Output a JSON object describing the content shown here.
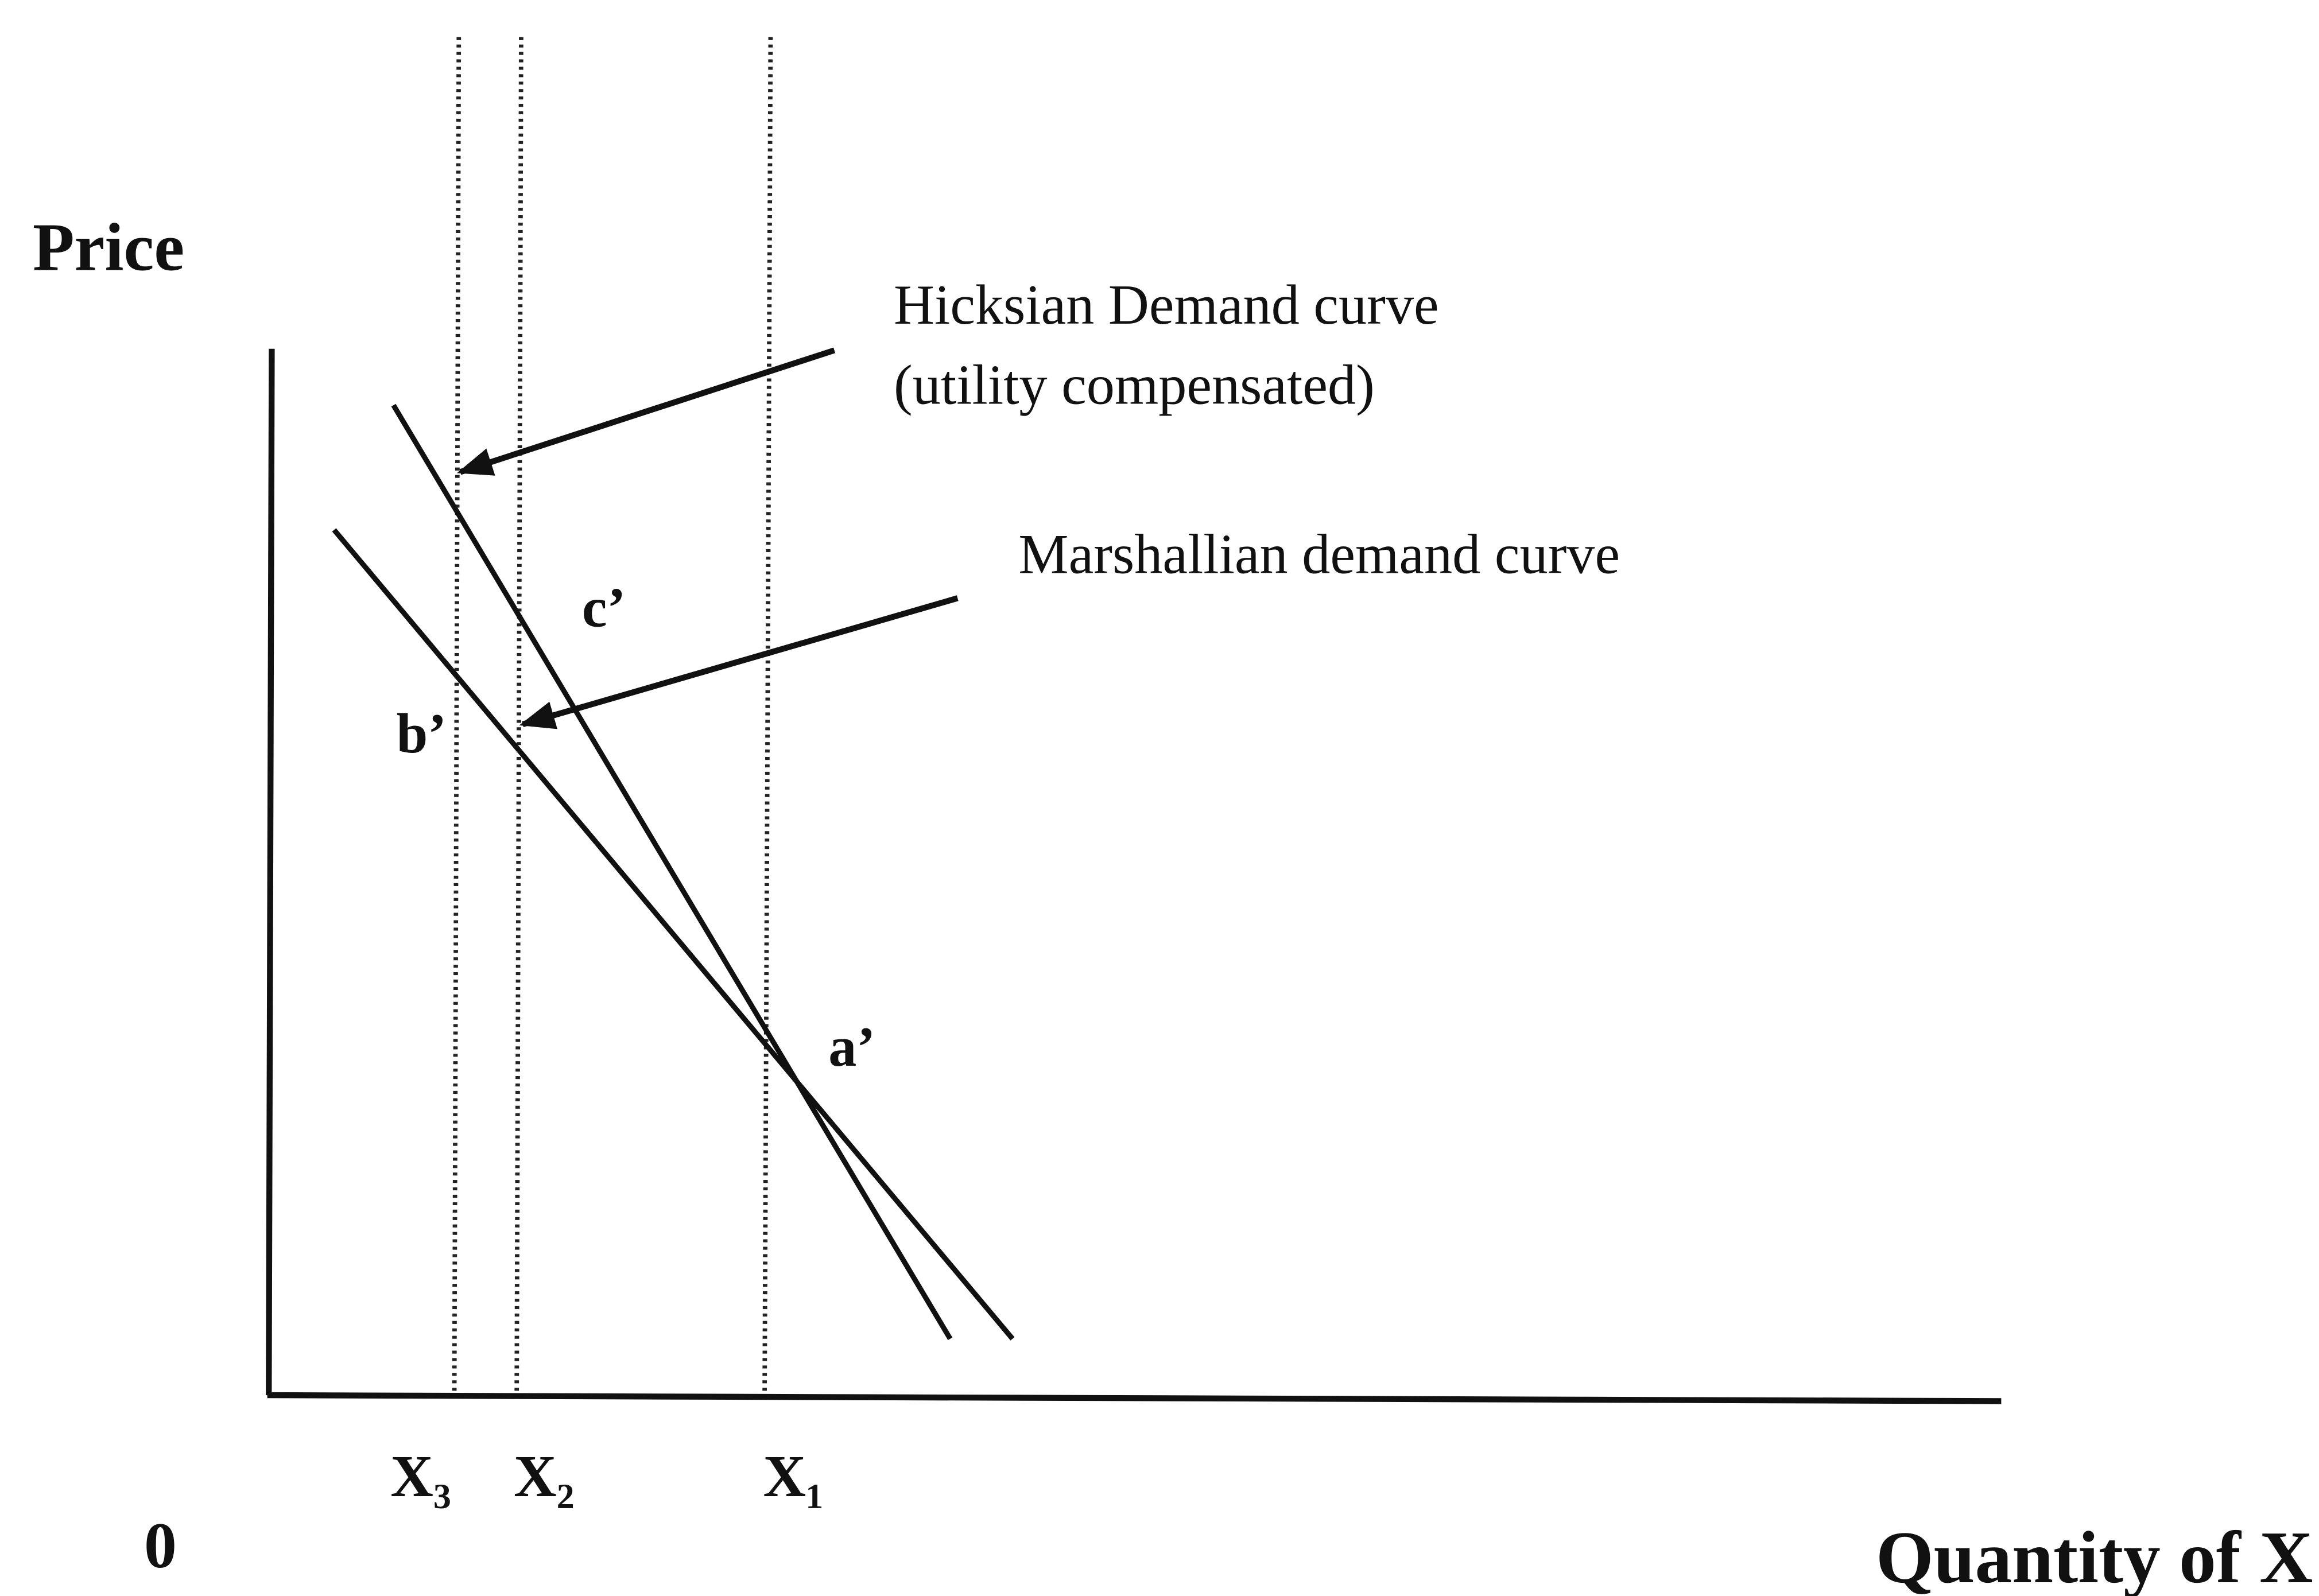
{
  "axes": {
    "y_label": "Price",
    "x_label": "Quantity of X",
    "origin": "0"
  },
  "x_markers": [
    "X₃",
    "X₂",
    "X₁"
  ],
  "annotations": {
    "hicksian_line1": "Hicksian Demand curve",
    "hicksian_line2": "(utility compensated)",
    "marshallian": "Marshallian demand curve"
  },
  "points": [
    "c’",
    "b’",
    "a’"
  ]
}
